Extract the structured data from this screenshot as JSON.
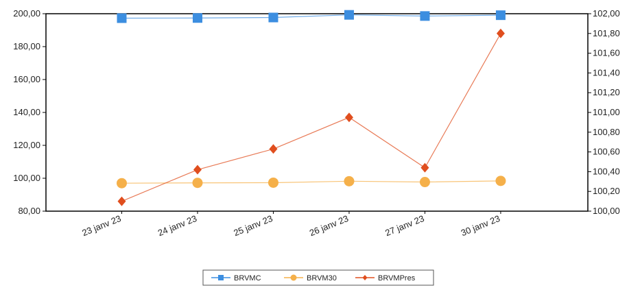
{
  "chart_data": {
    "type": "line",
    "title": "",
    "xlabel": "",
    "ylabel": "",
    "categories": [
      "23 janv 23",
      "24 janv 23",
      "25 janv 23",
      "26 janv 23",
      "27 janv 23",
      "30 janv 23"
    ],
    "ylim": [
      80,
      200
    ],
    "y2lim": [
      100,
      102
    ],
    "y_ticks": [
      "80,00",
      "100,00",
      "120,00",
      "140,00",
      "160,00",
      "180,00",
      "200,00"
    ],
    "y2_ticks": [
      "100,00",
      "100,20",
      "100,40",
      "100,60",
      "100,80",
      "101,00",
      "101,20",
      "101,40",
      "101,60",
      "101,80",
      "102,00"
    ],
    "grid": false,
    "legend_position": "bottom",
    "series": [
      {
        "name": "BRVMC",
        "axis": "left",
        "color": "#3c8ee0",
        "marker": "square",
        "values": [
          197.3,
          197.4,
          197.7,
          199.3,
          198.6,
          199.1
        ]
      },
      {
        "name": "BRVM30",
        "axis": "left",
        "color": "#f5b04a",
        "marker": "circle",
        "values": [
          97.0,
          97.2,
          97.3,
          98.2,
          97.7,
          98.4
        ]
      },
      {
        "name": "BRVMPres",
        "axis": "right",
        "color": "#e04e1e",
        "marker": "diamond",
        "values": [
          100.1,
          100.42,
          100.63,
          100.95,
          100.44,
          101.8
        ]
      }
    ]
  }
}
